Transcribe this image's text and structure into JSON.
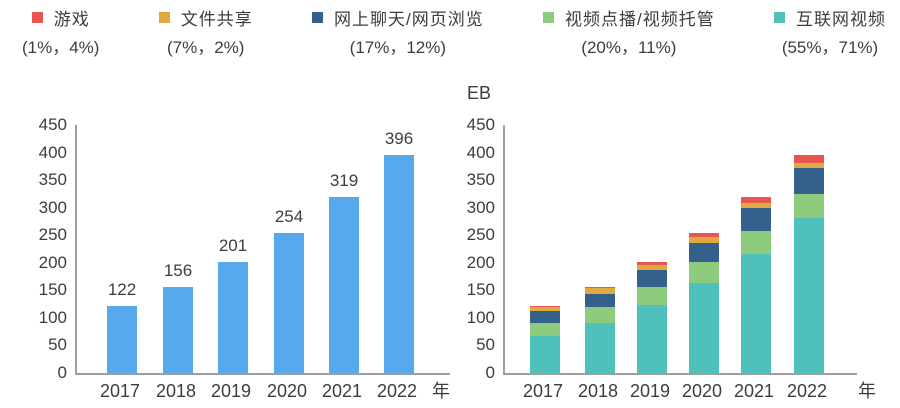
{
  "legend": {
    "items": [
      {
        "label": "游戏",
        "percents": "(1%，4%)",
        "color": "#e8574f"
      },
      {
        "label": "文件共享",
        "percents": "(7%，2%)",
        "color": "#dfa93e"
      },
      {
        "label": "网上聊天/网页浏览",
        "percents": "(17%，12%)",
        "color": "#34618c"
      },
      {
        "label": "视频点播/视频托管",
        "percents": "(20%，11%)",
        "color": "#8fcb7c"
      },
      {
        "label": "互联网视频",
        "percents": "(55%，71%)",
        "color": "#4fc0bb"
      }
    ]
  },
  "chart_data": [
    {
      "type": "bar",
      "title": "",
      "categories": [
        "2017",
        "2018",
        "2019",
        "2020",
        "2021",
        "2022"
      ],
      "values": [
        122,
        156,
        201,
        254,
        319,
        396
      ],
      "bar_color": "#55a9ec",
      "xlabel": "年",
      "ylabel": "",
      "ylim": [
        0,
        450
      ],
      "yticks": [
        0,
        50,
        100,
        150,
        200,
        250,
        300,
        350,
        400,
        450
      ],
      "grid": false,
      "data_labels": true
    },
    {
      "type": "stacked-bar",
      "title": "",
      "unit": "EB",
      "categories": [
        "2017",
        "2018",
        "2019",
        "2020",
        "2021",
        "2022"
      ],
      "series": [
        {
          "name": "互联网视频",
          "color": "#4fc0bb",
          "values": [
            67.1,
            90.8,
            123.4,
            164.1,
            216.3,
            281.2
          ]
        },
        {
          "name": "视频点播/视频托管",
          "color": "#8fcb7c",
          "values": [
            24.4,
            28.4,
            33.0,
            37.1,
            40.8,
            43.6
          ]
        },
        {
          "name": "网上聊天/网页浏览",
          "color": "#34618c",
          "values": [
            20.7,
            25.0,
            30.2,
            35.6,
            41.5,
            47.5
          ]
        },
        {
          "name": "文件共享",
          "color": "#dfa93e",
          "values": [
            8.5,
            9.4,
            10.1,
            10.2,
            9.6,
            7.9
          ]
        },
        {
          "name": "游戏",
          "color": "#e8574f",
          "values": [
            1.2,
            2.5,
            4.4,
            7.1,
            10.8,
            15.8
          ]
        }
      ],
      "totals": [
        122,
        156,
        201,
        254,
        319,
        396
      ],
      "xlabel": "年",
      "ylim": [
        0,
        450
      ],
      "yticks": [
        0,
        50,
        100,
        150,
        200,
        250,
        300,
        350,
        400,
        450
      ],
      "grid": false,
      "legend_position": "top"
    }
  ]
}
